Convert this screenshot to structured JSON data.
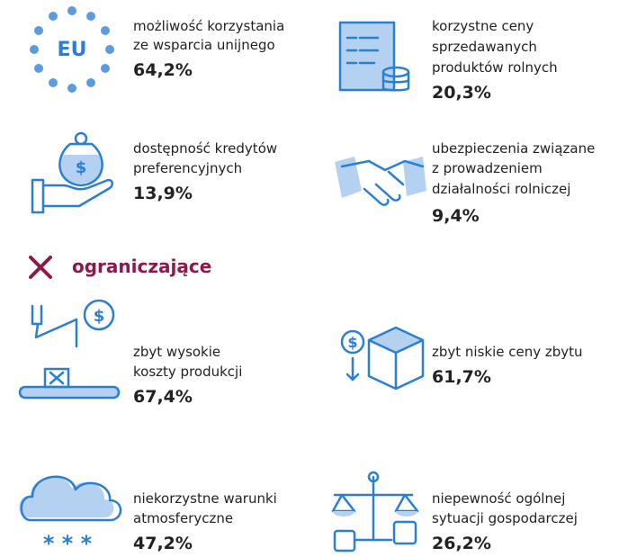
{
  "supporting": [
    {
      "label": [
        "możliwość korzystania",
        "ze wsparcia unijnego"
      ],
      "value": "64,2%",
      "icon_text": "EU"
    },
    {
      "label": [
        "korzystne ceny",
        "sprzedawanych",
        "produktów rolnych"
      ],
      "value": "20,3%"
    },
    {
      "label": [
        "dostępność kredytów",
        "preferencyjnych"
      ],
      "value": "13,9%"
    },
    {
      "label": [
        "ubezpieczenia związane",
        "z prowadzeniem",
        "działalności rolniczej"
      ],
      "value": "9,4%"
    }
  ],
  "limiting_header": "ograniczające",
  "limiting": [
    {
      "label": [
        "zbyt wysokie",
        "koszty produkcji"
      ],
      "value": "67,4%"
    },
    {
      "label": [
        "zbyt niskie ceny zbytu"
      ],
      "value": "61,7%"
    },
    {
      "label": [
        "niekorzystne warunki",
        "atmosferyczne"
      ],
      "value": "47,2%"
    },
    {
      "label": [
        "niepewność ogólnej",
        "sytuacji gospodarczej"
      ],
      "value": "26,2%"
    }
  ]
}
